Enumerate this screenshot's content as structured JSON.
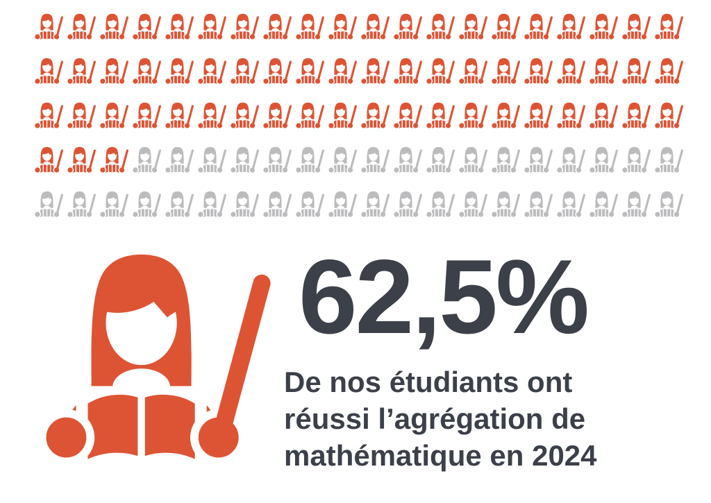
{
  "chart_data": {
    "type": "pictogram",
    "title": "62,5%",
    "value_label": "62,5%",
    "percent_value": 62.5,
    "caption": "De nos étudiants ont réussi l’agrégation de mathématique en 2024",
    "caption_lines": [
      "De nos étudiants ont",
      "réussi l’agrégation de",
      "mathématique en 2024"
    ],
    "icon_semantic": "female-teacher-reading-open-book-with-pointer-icon",
    "grid": {
      "rows": 5,
      "columns": 20,
      "total_icons": 100,
      "highlighted_icons": 63
    },
    "legend": "none",
    "axes": "none",
    "colors": {
      "highlight": "#DD5435",
      "muted": "#BCBCBE",
      "text": "#3B4049",
      "background": "#FFFFFF"
    }
  }
}
